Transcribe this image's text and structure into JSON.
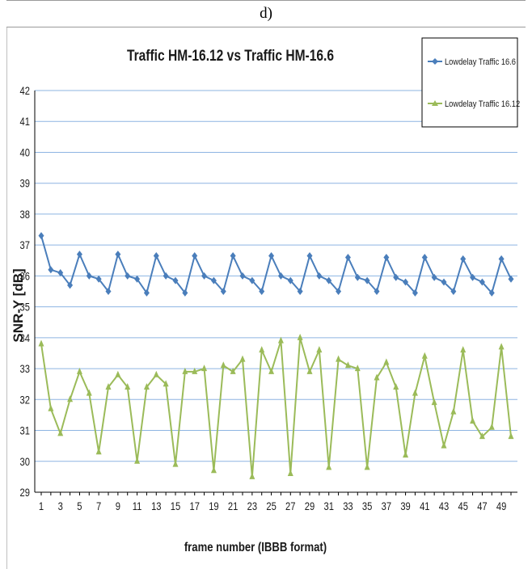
{
  "panel_label": "d)",
  "chart_data": {
    "type": "line",
    "title": "Traffic HM-16.12 vs Traffic HM-16.6",
    "xlabel": "frame number (IBBB format)",
    "ylabel": "SNR-Y [dB]",
    "xlim": [
      1,
      50
    ],
    "ylim": [
      29,
      42
    ],
    "x_ticks": [
      "1",
      "3",
      "5",
      "7",
      "9",
      "11",
      "13",
      "15",
      "17",
      "19",
      "21",
      "23",
      "25",
      "27",
      "29",
      "31",
      "33",
      "35",
      "37",
      "39",
      "41",
      "43",
      "45",
      "47",
      "49"
    ],
    "y_ticks": [
      "29",
      "30",
      "31",
      "32",
      "33",
      "34",
      "35",
      "36",
      "37",
      "38",
      "39",
      "40",
      "41",
      "42"
    ],
    "grid": true,
    "legend_position": "top-right",
    "x": [
      1,
      2,
      3,
      4,
      5,
      6,
      7,
      8,
      9,
      10,
      11,
      12,
      13,
      14,
      15,
      16,
      17,
      18,
      19,
      20,
      21,
      22,
      23,
      24,
      25,
      26,
      27,
      28,
      29,
      30,
      31,
      32,
      33,
      34,
      35,
      36,
      37,
      38,
      39,
      40,
      41,
      42,
      43,
      44,
      45,
      46,
      47,
      48,
      49,
      50
    ],
    "series": [
      {
        "name": "Lowdelay Traffic 16.6",
        "color": "#4a7ebb",
        "marker": "diamond",
        "values": [
          37.3,
          36.2,
          36.1,
          35.7,
          36.7,
          36.0,
          35.9,
          35.5,
          36.7,
          36.0,
          35.9,
          35.45,
          36.65,
          36.0,
          35.85,
          35.45,
          36.65,
          36.0,
          35.85,
          35.5,
          36.65,
          36.0,
          35.85,
          35.5,
          36.65,
          36.0,
          35.85,
          35.5,
          36.65,
          36.0,
          35.85,
          35.5,
          36.6,
          35.95,
          35.85,
          35.5,
          36.6,
          35.95,
          35.8,
          35.45,
          36.6,
          35.95,
          35.8,
          35.5,
          36.55,
          35.95,
          35.8,
          35.45,
          36.55,
          35.9
        ]
      },
      {
        "name": "Lowdelay Traffic 16.12",
        "color": "#9bbb59",
        "marker": "triangle",
        "values": [
          33.8,
          31.7,
          30.9,
          32.0,
          32.9,
          32.2,
          30.3,
          32.4,
          32.8,
          32.4,
          30.0,
          32.4,
          32.8,
          32.5,
          29.9,
          32.9,
          32.9,
          33.0,
          29.7,
          33.1,
          32.9,
          33.3,
          29.5,
          33.6,
          32.9,
          33.9,
          29.6,
          34.0,
          32.9,
          33.6,
          29.8,
          33.3,
          33.1,
          33.0,
          29.8,
          32.7,
          33.2,
          32.4,
          30.2,
          32.2,
          33.4,
          31.9,
          30.5,
          31.6,
          33.6,
          31.3,
          30.8,
          31.1,
          33.7,
          30.8
        ]
      }
    ]
  }
}
